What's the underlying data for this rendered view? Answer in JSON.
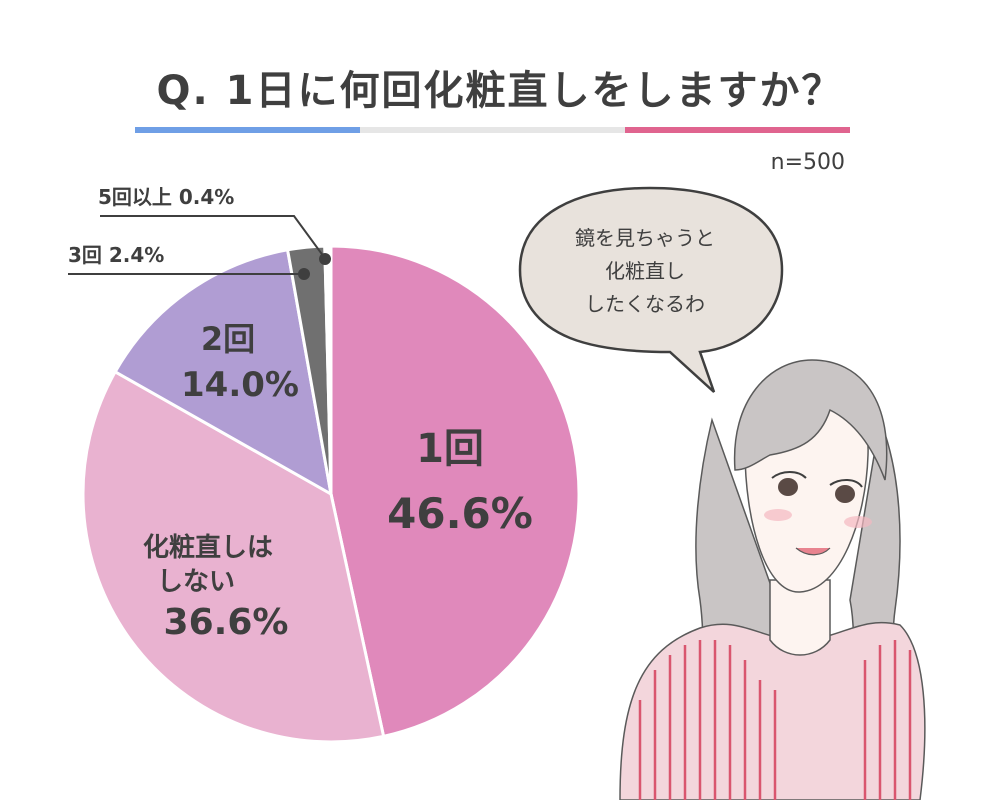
{
  "title": "Q. 1日に何回化粧直しをしますか？",
  "sample_size": "n=500",
  "speech_bubble": [
    "鏡を見ちゃうと",
    "化粧直し",
    "したくなるわ"
  ],
  "colors": {
    "rule_left": "#6f9fe6",
    "rule_right": "#e0648f",
    "bubble_fill": "#e8e2dc"
  },
  "chart_data": {
    "type": "pie",
    "title": "Q. 1日に何回化粧直しをしますか？",
    "slices": [
      {
        "label": "1回",
        "value": 46.6,
        "value_text": "46.6%",
        "color": "#e089bb"
      },
      {
        "label": "化粧直しはしない",
        "value": 36.6,
        "value_text": "36.6%",
        "color": "#e9b2d0"
      },
      {
        "label": "2回",
        "value": 14.0,
        "value_text": "14.0%",
        "color": "#b09dd3"
      },
      {
        "label": "3回",
        "value": 2.4,
        "value_text": "2.4%",
        "color": "#707070"
      },
      {
        "label": "5回以上",
        "value": 0.4,
        "value_text": "0.4%",
        "color": "#ffffff"
      }
    ],
    "slice_labels": [
      [
        "1回",
        "46.6%"
      ],
      [
        "化粧直しは",
        "しない",
        "36.6%"
      ],
      [
        "2回",
        "14.0%"
      ]
    ],
    "callouts": [
      "5回以上 0.4%",
      "3回 2.4%"
    ]
  }
}
